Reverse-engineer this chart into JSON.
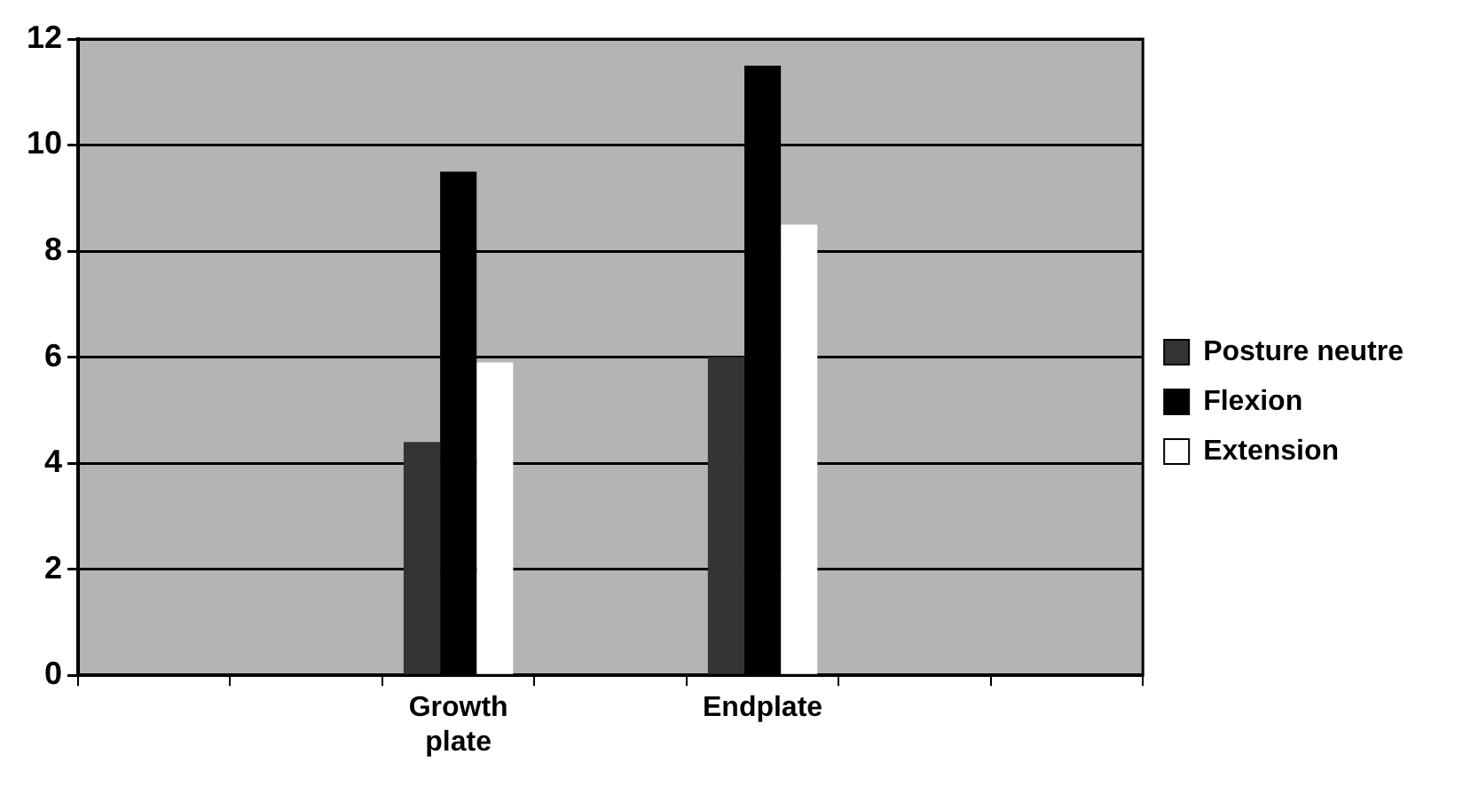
{
  "chart_data": {
    "type": "bar",
    "categories": [
      null,
      null,
      "Growth plate",
      null,
      "Endplate",
      null,
      null
    ],
    "series": [
      {
        "name": "Posture neutre",
        "color": "#333333",
        "values": [
          null,
          null,
          4.4,
          null,
          6.0,
          null,
          null
        ]
      },
      {
        "name": "Flexion",
        "color": "#000000",
        "values": [
          null,
          null,
          9.5,
          null,
          11.5,
          null,
          null
        ]
      },
      {
        "name": "Extension",
        "color": "#ffffff",
        "values": [
          null,
          null,
          5.9,
          null,
          8.5,
          null,
          null
        ]
      }
    ],
    "ylim": [
      0,
      12
    ],
    "yticks": [
      0,
      2,
      4,
      6,
      8,
      10,
      12
    ],
    "grid": "y",
    "legend": "right"
  }
}
